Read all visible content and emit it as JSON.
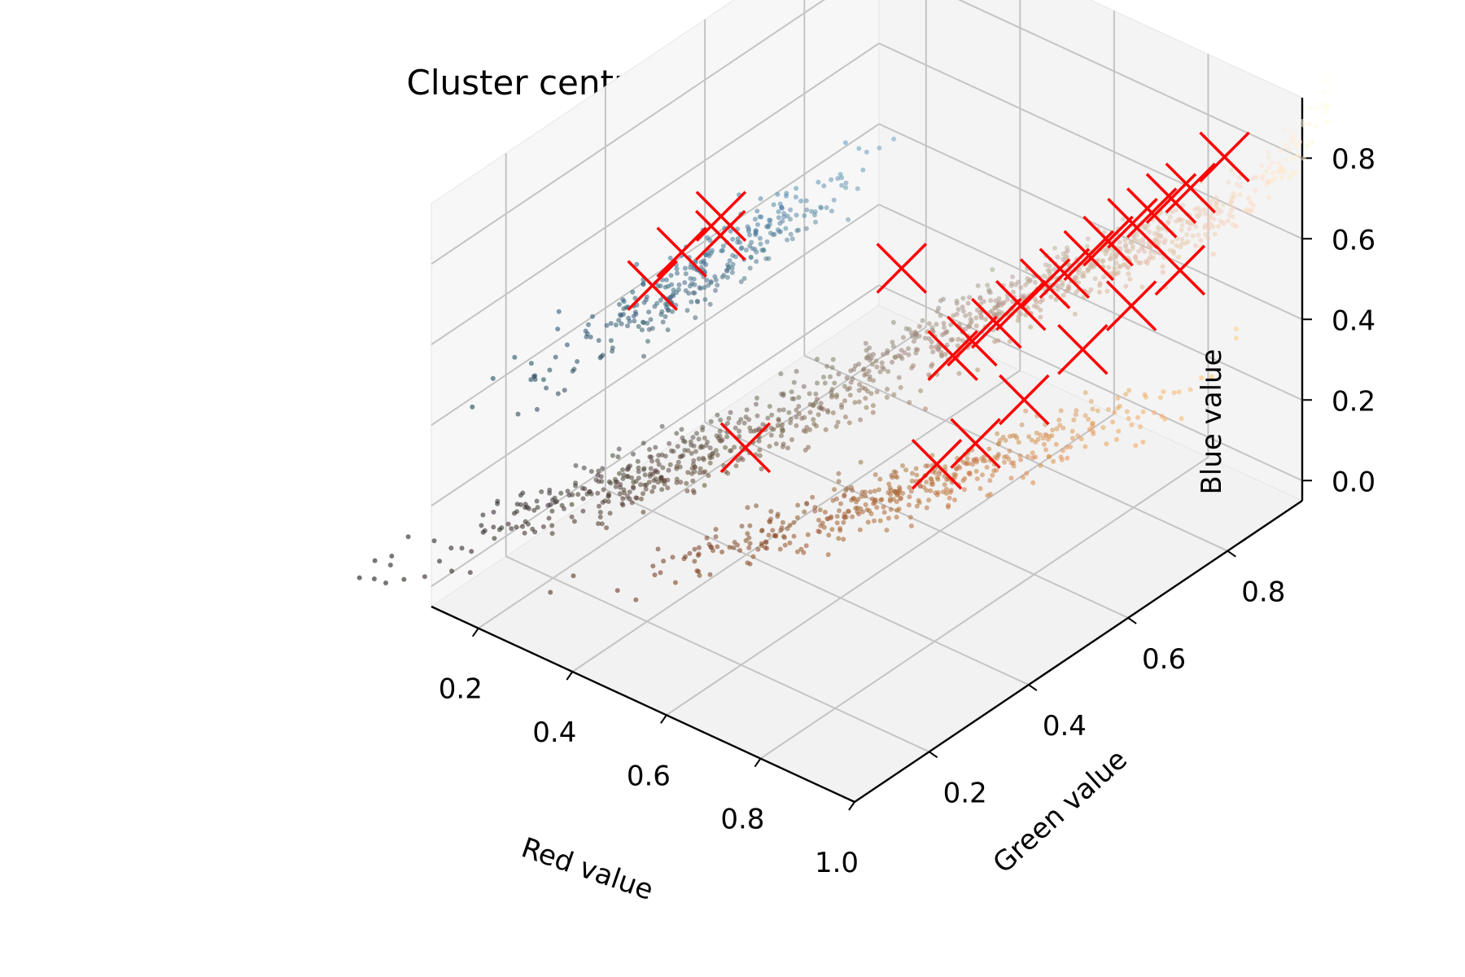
{
  "chart_data": {
    "type": "scatter",
    "projection": "3d",
    "title": "Cluster centroids and the original colours",
    "xlabel": "Red value",
    "ylabel": "Green value",
    "zlabel": "Blue value",
    "xlim": [
      0.1,
      1.0
    ],
    "ylim": [
      0.05,
      0.95
    ],
    "zlim": [
      -0.05,
      0.95
    ],
    "xticks": [
      "0.2",
      "0.4",
      "0.6",
      "0.8",
      "1.0"
    ],
    "yticks": [
      "0.2",
      "0.4",
      "0.6",
      "0.8"
    ],
    "zticks": [
      "0.0",
      "0.2",
      "0.4",
      "0.6",
      "0.8"
    ],
    "grid": true,
    "series": [
      {
        "role": "original colours (pixel samples)",
        "marker": "dot",
        "color": "per-point RGB",
        "clusters": [
          {
            "center": [
              0.8,
              0.7,
              0.62
            ],
            "spread": [
              0.16,
              0.14,
              0.13
            ],
            "count": 700
          },
          {
            "center": [
              0.72,
              0.46,
              0.25
            ],
            "spread": [
              0.14,
              0.12,
              0.08
            ],
            "count": 450
          },
          {
            "center": [
              0.36,
              0.3,
              0.24
            ],
            "spread": [
              0.14,
              0.12,
              0.09
            ],
            "count": 420
          },
          {
            "center": [
              0.27,
              0.45,
              0.55
            ],
            "spread": [
              0.07,
              0.08,
              0.09
            ],
            "count": 320
          }
        ]
      },
      {
        "role": "cluster centroids",
        "marker": "x",
        "color": "#ff0000",
        "points": [
          [
            0.93,
            0.86,
            0.84
          ],
          [
            0.9,
            0.82,
            0.78
          ],
          [
            0.88,
            0.8,
            0.76
          ],
          [
            0.86,
            0.78,
            0.73
          ],
          [
            0.84,
            0.76,
            0.71
          ],
          [
            0.82,
            0.73,
            0.68
          ],
          [
            0.8,
            0.71,
            0.65
          ],
          [
            0.78,
            0.68,
            0.62
          ],
          [
            0.76,
            0.66,
            0.6
          ],
          [
            0.74,
            0.63,
            0.56
          ],
          [
            0.72,
            0.6,
            0.53
          ],
          [
            0.7,
            0.57,
            0.5
          ],
          [
            0.68,
            0.55,
            0.47
          ],
          [
            0.92,
            0.78,
            0.62
          ],
          [
            0.88,
            0.72,
            0.56
          ],
          [
            0.84,
            0.66,
            0.48
          ],
          [
            0.8,
            0.58,
            0.4
          ],
          [
            0.76,
            0.52,
            0.32
          ],
          [
            0.72,
            0.48,
            0.28
          ],
          [
            0.44,
            0.36,
            0.27
          ],
          [
            0.24,
            0.5,
            0.62
          ],
          [
            0.22,
            0.44,
            0.57
          ],
          [
            0.26,
            0.48,
            0.6
          ],
          [
            0.2,
            0.4,
            0.51
          ],
          [
            0.55,
            0.57,
            0.6
          ]
        ]
      }
    ]
  }
}
